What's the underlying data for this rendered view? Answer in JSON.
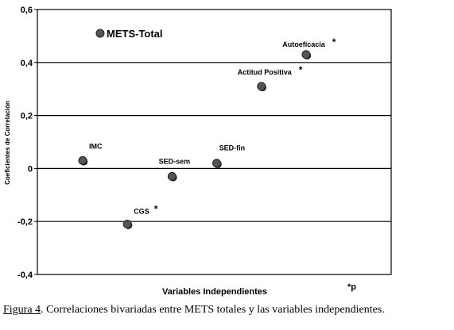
{
  "chart_data": {
    "type": "scatter",
    "xlabel": "Variables Independientes",
    "ylabel": "Coeficientes de Correlación",
    "ylim": [
      -0.4,
      0.6
    ],
    "yticks": [
      "0,6",
      "0,4",
      "0,2",
      "0",
      "-0,2",
      "-0,4"
    ],
    "grid": true,
    "legend": {
      "label": "METS-Total",
      "placement": "top-left"
    },
    "points": [
      {
        "label": "IMC",
        "x": 1,
        "y": 0.03,
        "significant": false
      },
      {
        "label": "CGS",
        "x": 2,
        "y": -0.21,
        "significant": true
      },
      {
        "label": "SED-sem",
        "x": 3,
        "y": -0.03,
        "significant": false
      },
      {
        "label": "SED-fin",
        "x": 4,
        "y": 0.02,
        "significant": false
      },
      {
        "label": "Actitud Positiva",
        "x": 5,
        "y": 0.31,
        "significant": true
      },
      {
        "label": "Autoeficacia",
        "x": 6,
        "y": 0.43,
        "significant": true
      }
    ],
    "significance_marker": "*",
    "footnote": "*p"
  },
  "caption": {
    "figure": "Figura 4",
    "text": ". Correlaciones bivariadas entre METS totales y las variables independientes."
  }
}
